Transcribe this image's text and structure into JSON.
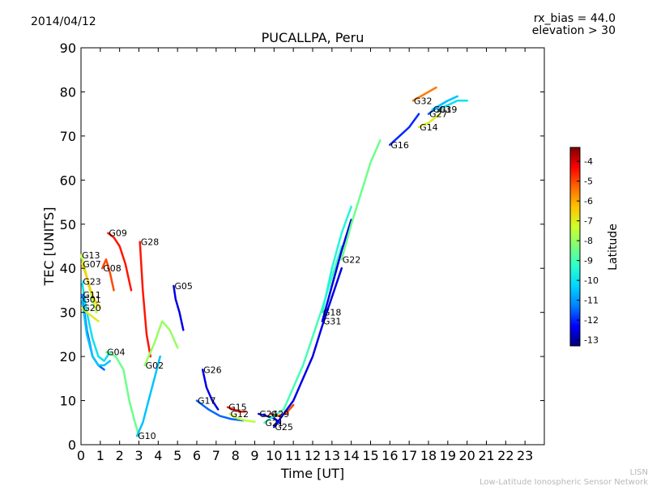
{
  "header": {
    "date": "2014/04/12",
    "rx_bias": "rx_bias = 44.0",
    "elevation": "elevation > 30",
    "title": "PUCALLPA, Peru"
  },
  "footer": {
    "line1": "LISN",
    "line2": "Low-Latitude Ionospheric Sensor Network"
  },
  "chart_data": {
    "type": "line",
    "title": "PUCALLPA, Peru",
    "xlabel": "Time [UT]",
    "ylabel": "TEC [UNITS]",
    "xlim": [
      0,
      24
    ],
    "ylim": [
      0,
      90
    ],
    "xticks": [
      "0",
      "1",
      "2",
      "3",
      "4",
      "5",
      "6",
      "7",
      "8",
      "9",
      "10",
      "11",
      "12",
      "13",
      "14",
      "15",
      "16",
      "17",
      "18",
      "19",
      "20",
      "21",
      "22",
      "23"
    ],
    "yticks": [
      "0",
      "10",
      "20",
      "30",
      "40",
      "50",
      "60",
      "70",
      "80",
      "90"
    ],
    "grid": false,
    "colorbar": {
      "label": "Latitude",
      "min": -13.3,
      "max": -3.3,
      "ticks": [
        "-4",
        "-5",
        "-6",
        "-7",
        "-8",
        "-9",
        "-10",
        "-11",
        "-12",
        "-13"
      ],
      "colors": [
        "#00007f",
        "#0000ff",
        "#0080ff",
        "#00d4ff",
        "#29ffce",
        "#7dff7a",
        "#ceff29",
        "#ffc400",
        "#ff6800",
        "#ff0000",
        "#7f0000"
      ]
    },
    "series": [
      {
        "name": "G13",
        "lat": -7.5,
        "x": [
          0.0,
          0.2,
          0.4,
          0.6,
          0.8
        ],
        "y": [
          43,
          40,
          36,
          33,
          30
        ]
      },
      {
        "name": "G07",
        "lat": -6.5,
        "x": [
          0.05,
          0.3,
          0.5,
          0.8,
          1.0
        ],
        "y": [
          41,
          38,
          35,
          32,
          31
        ]
      },
      {
        "name": "G23",
        "lat": -10.0,
        "x": [
          0.05,
          0.3,
          0.6,
          0.9,
          1.2,
          1.5
        ],
        "y": [
          37,
          30,
          24,
          20,
          19,
          21
        ]
      },
      {
        "name": "G11",
        "lat": -11.5,
        "x": [
          0.05,
          0.3,
          0.6,
          0.9,
          1.2
        ],
        "y": [
          34,
          26,
          20,
          18,
          17
        ]
      },
      {
        "name": "G01",
        "lat": -10.5,
        "x": [
          0.05,
          0.3,
          0.6,
          0.9,
          1.2,
          1.5
        ],
        "y": [
          33,
          25,
          20,
          18,
          18,
          19
        ]
      },
      {
        "name": "G20",
        "lat": -7.0,
        "x": [
          0.05,
          0.3,
          0.6,
          0.9
        ],
        "y": [
          31,
          30,
          29,
          28
        ]
      },
      {
        "name": "G09",
        "lat": -4.5,
        "x": [
          1.4,
          1.7,
          2.0,
          2.3,
          2.6
        ],
        "y": [
          48,
          47,
          45,
          41,
          35
        ]
      },
      {
        "name": "G08",
        "lat": -5.0,
        "x": [
          1.1,
          1.3,
          1.5,
          1.7
        ],
        "y": [
          40,
          42,
          39,
          35
        ]
      },
      {
        "name": "G28",
        "lat": -4.5,
        "x": [
          3.05,
          3.2,
          3.4,
          3.6
        ],
        "y": [
          46,
          35,
          25,
          20
        ]
      },
      {
        "name": "G04",
        "lat": -8.5,
        "x": [
          1.3,
          1.8,
          2.2,
          2.5,
          2.8,
          3.0
        ],
        "y": [
          21,
          20,
          17,
          10,
          5,
          2
        ]
      },
      {
        "name": "G10",
        "lat": -10.5,
        "x": [
          2.9,
          3.2,
          3.5,
          3.8,
          4.1
        ],
        "y": [
          2,
          5,
          10,
          15,
          20
        ]
      },
      {
        "name": "G02",
        "lat": -8.0,
        "x": [
          3.3,
          3.8,
          4.2,
          4.6,
          5.0
        ],
        "y": [
          18,
          23,
          28,
          26,
          22
        ]
      },
      {
        "name": "G05",
        "lat": -12.5,
        "x": [
          4.8,
          4.9,
          5.1,
          5.3
        ],
        "y": [
          36,
          33,
          30,
          26
        ]
      },
      {
        "name": "G26",
        "lat": -12.5,
        "x": [
          6.3,
          6.5,
          6.8,
          7.1
        ],
        "y": [
          17,
          13,
          10,
          8
        ]
      },
      {
        "name": "G17",
        "lat": -11.5,
        "x": [
          6.0,
          6.6,
          7.2,
          7.8,
          8.4
        ],
        "y": [
          10,
          8,
          6.5,
          5.8,
          5.5
        ]
      },
      {
        "name": "G15",
        "lat": -4.5,
        "x": [
          7.6,
          7.9,
          8.2,
          8.5
        ],
        "y": [
          8.5,
          8,
          7.5,
          7.5
        ]
      },
      {
        "name": "G12",
        "lat": -7.5,
        "x": [
          7.7,
          8.1,
          8.5,
          9.0
        ],
        "y": [
          7,
          6,
          5.5,
          5.2
        ]
      },
      {
        "name": "G24",
        "lat": -12.5,
        "x": [
          9.2,
          9.6,
          10.0,
          10.3
        ],
        "y": [
          7,
          6.5,
          6,
          5
        ]
      },
      {
        "name": "G29",
        "lat": -5.0,
        "x": [
          9.8,
          10.2,
          10.6,
          11.0
        ],
        "y": [
          7,
          6.5,
          7,
          9
        ]
      },
      {
        "name": "G21",
        "lat": -9.0,
        "x": [
          9.5,
          10.5,
          11.5,
          12.5,
          13.5
        ],
        "y": [
          5,
          8,
          18,
          31,
          45
        ]
      },
      {
        "name": "G25",
        "lat": -12.5,
        "x": [
          10.0,
          11.0,
          12.0,
          12.5,
          13.5
        ],
        "y": [
          4,
          10,
          20,
          27,
          40
        ]
      },
      {
        "name": "G18",
        "lat": -9.5,
        "x": [
          12.5,
          13.0,
          13.5,
          14.0
        ],
        "y": [
          30,
          40,
          48,
          54
        ]
      },
      {
        "name": "G31",
        "lat": -12.5,
        "x": [
          12.5,
          13.0,
          13.5,
          14.0
        ],
        "y": [
          28,
          36,
          44,
          51
        ]
      },
      {
        "name": "G22",
        "lat": -8.5,
        "x": [
          13.5,
          14.0,
          14.5,
          15.0,
          15.5
        ],
        "y": [
          42,
          50,
          57,
          64,
          69
        ]
      },
      {
        "name": "G16",
        "lat": -12.0,
        "x": [
          16.0,
          16.5,
          17.0,
          17.5
        ],
        "y": [
          68,
          70,
          72,
          75
        ]
      },
      {
        "name": "G32",
        "lat": -5.5,
        "x": [
          17.2,
          17.6,
          18.0,
          18.4
        ],
        "y": [
          78,
          79,
          80,
          81
        ]
      },
      {
        "name": "G27",
        "lat": -11.5,
        "x": [
          18.0,
          18.3,
          18.6,
          19.0
        ],
        "y": [
          75,
          76,
          77,
          78
        ]
      },
      {
        "name": "G03",
        "lat": -10.5,
        "x": [
          18.2,
          18.6,
          19.0,
          19.5
        ],
        "y": [
          76,
          77,
          78,
          79
        ]
      },
      {
        "name": "G19",
        "lat": -10.0,
        "x": [
          18.5,
          19.0,
          19.5,
          20.0
        ],
        "y": [
          76,
          77,
          78,
          78
        ]
      },
      {
        "name": "G14",
        "lat": -7.0,
        "x": [
          17.5,
          18.0,
          18.3,
          18.6
        ],
        "y": [
          72,
          73,
          74,
          75
        ]
      }
    ]
  }
}
